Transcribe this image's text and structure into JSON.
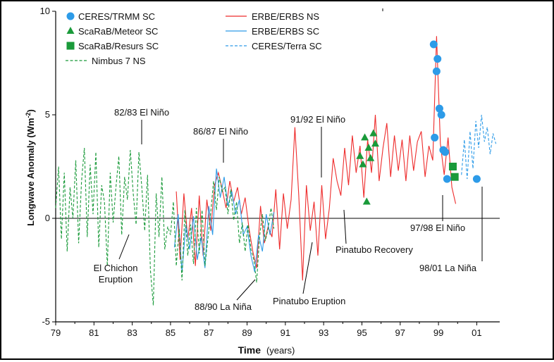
{
  "chart_data": {
    "type": "line",
    "title": "",
    "xlabel_bold": "Time",
    "xlabel_unit": "(years)",
    "ylabel": "Longwave Anomaly (Wm",
    "ylabel_sup": "-2",
    "ylabel_close": ")",
    "xlim": [
      1979,
      2002.2
    ],
    "ylim": [
      -5,
      10
    ],
    "x_ticks": [
      1979,
      1981,
      1983,
      1985,
      1987,
      1989,
      1991,
      1993,
      1995,
      1997,
      1999,
      2001
    ],
    "x_tick_labels": [
      "79",
      "81",
      "83",
      "85",
      "87",
      "89",
      "91",
      "93",
      "95",
      "97",
      "99",
      "01"
    ],
    "y_ticks": [
      -5,
      0,
      5,
      10
    ],
    "y_tick_labels": [
      "-5",
      "0",
      "5",
      "10"
    ],
    "legend_placement": "top-left",
    "series": [
      {
        "name": "CERES/TRMM SC",
        "kind": "marker",
        "marker": "circle",
        "color": "#2d9be8",
        "x": [
          1998.75,
          1998.8,
          1998.9,
          1998.95,
          1999.05,
          1999.15,
          1999.25,
          1999.35,
          1999.45,
          2001.0
        ],
        "y": [
          8.4,
          3.9,
          7.1,
          7.7,
          5.3,
          5.0,
          3.3,
          3.2,
          1.9,
          1.9
        ]
      },
      {
        "name": "ScaRaB/Meteor SC",
        "kind": "marker",
        "marker": "triangle",
        "color": "#1a9a3a",
        "x": [
          1994.9,
          1995.05,
          1995.15,
          1995.35,
          1995.45,
          1995.6,
          1995.7,
          1995.25
        ],
        "y": [
          3.0,
          2.6,
          3.9,
          3.4,
          2.9,
          4.1,
          3.6,
          0.8
        ]
      },
      {
        "name": "ScaRaB/Resurs SC",
        "kind": "marker",
        "marker": "square",
        "color": "#1a9a3a",
        "x": [
          1999.75,
          1999.85
        ],
        "y": [
          2.5,
          2.0
        ]
      },
      {
        "name": "ERBE/ERBS NS",
        "kind": "line",
        "style": "solid",
        "color": "#ee2c2c",
        "x": [
          1985.3,
          1985.5,
          1985.7,
          1985.9,
          1986.1,
          1986.3,
          1986.5,
          1986.7,
          1986.9,
          1987.1,
          1987.3,
          1987.5,
          1987.7,
          1987.9,
          1988.1,
          1988.3,
          1988.5,
          1988.7,
          1988.9,
          1989.1,
          1989.3,
          1989.5,
          1989.7,
          1989.9,
          1990.1,
          1990.3,
          1990.5,
          1990.7,
          1990.9,
          1991.1,
          1991.3,
          1991.5,
          1991.7,
          1991.9,
          1992.1,
          1992.3,
          1992.5,
          1992.7,
          1992.9,
          1993.1,
          1993.3,
          1993.5,
          1993.7,
          1993.9,
          1994.1,
          1994.3,
          1994.5,
          1994.7,
          1994.9,
          1995.1,
          1995.3,
          1995.5,
          1995.7,
          1995.9,
          1996.1,
          1996.3,
          1996.5,
          1996.7,
          1996.9,
          1997.1,
          1997.3,
          1997.5,
          1997.7,
          1997.9,
          1998.1,
          1998.3,
          1998.5,
          1998.7,
          1998.9,
          1999.1,
          1999.3,
          1999.5,
          1999.7,
          1999.9
        ],
        "y": [
          1.3,
          -2.0,
          1.2,
          -1.0,
          0.5,
          -2.3,
          1.1,
          -1.8,
          0.9,
          -0.6,
          1.6,
          2.2,
          1.4,
          0.5,
          1.8,
          0.8,
          1.5,
          0.2,
          1.0,
          -0.5,
          -1.6,
          -2.4,
          0.6,
          -1.2,
          -0.4,
          -0.9,
          1.4,
          -1.5,
          1.2,
          -0.5,
          0.9,
          4.4,
          1.1,
          -3.0,
          1.6,
          -0.6,
          0.8,
          -1.8,
          1.6,
          -1.0,
          0.5,
          2.9,
          1.8,
          1.1,
          3.4,
          1.6,
          4.0,
          2.2,
          3.5,
          1.0,
          3.8,
          2.2,
          5.0,
          1.8,
          3.4,
          4.6,
          2.0,
          4.0,
          2.3,
          3.8,
          1.8,
          4.0,
          2.3,
          3.7,
          4.2,
          2.0,
          3.5,
          2.8,
          8.8,
          3.6,
          2.1,
          3.9,
          1.5,
          0.7
        ]
      },
      {
        "name": "ERBE/ERBS SC",
        "kind": "line",
        "style": "solid",
        "color": "#2d9be8",
        "x": [
          1985.2,
          1985.4,
          1985.6,
          1985.8,
          1986.0,
          1986.2,
          1986.4,
          1986.6,
          1986.8,
          1987.0,
          1987.2,
          1987.4,
          1987.6,
          1987.8,
          1988.0,
          1988.2,
          1988.4,
          1988.6,
          1988.8,
          1989.0,
          1989.2,
          1989.4,
          1989.6,
          1989.8,
          1990.0,
          1990.2,
          1990.4
        ],
        "y": [
          -1.4,
          0.2,
          -2.6,
          -0.3,
          -1.5,
          0.1,
          -2.0,
          -0.9,
          -2.4,
          0.6,
          -0.8,
          2.4,
          1.0,
          2.0,
          0.6,
          1.3,
          0.2,
          0.9,
          -0.8,
          -0.4,
          -1.8,
          -2.6,
          -0.8,
          -1.6,
          0.2,
          -0.8,
          0.3
        ]
      },
      {
        "name": "CERES/Terra SC",
        "kind": "line",
        "style": "dashed",
        "color": "#2d9be8",
        "x": [
          2000.2,
          2000.35,
          2000.5,
          2000.65,
          2000.8,
          2000.95,
          2001.1,
          2001.25,
          2001.4,
          2001.55,
          2001.7,
          2001.85,
          2002.0
        ],
        "y": [
          2.1,
          3.8,
          1.9,
          4.2,
          2.4,
          4.7,
          3.4,
          5.0,
          3.7,
          4.4,
          3.1,
          4.1,
          3.6
        ]
      },
      {
        "name": "Nimbus 7 NS",
        "kind": "line",
        "style": "dashed",
        "color": "#1a9a3a",
        "x": [
          1979.0,
          1979.15,
          1979.3,
          1979.45,
          1979.6,
          1979.75,
          1979.9,
          1980.05,
          1980.2,
          1980.35,
          1980.5,
          1980.65,
          1980.8,
          1980.95,
          1981.1,
          1981.25,
          1981.4,
          1981.55,
          1981.7,
          1981.85,
          1982.0,
          1982.15,
          1982.3,
          1982.45,
          1982.6,
          1982.75,
          1982.9,
          1983.05,
          1983.2,
          1983.35,
          1983.5,
          1983.65,
          1983.8,
          1983.95,
          1984.1,
          1984.25,
          1984.4,
          1984.55,
          1984.7,
          1984.85,
          1985.0,
          1985.15,
          1985.3,
          1985.45,
          1985.6,
          1985.75,
          1985.9,
          1986.05,
          1986.2,
          1986.35,
          1986.5,
          1986.65,
          1986.8,
          1986.95,
          1987.1,
          1987.25,
          1987.4,
          1987.55,
          1987.7,
          1987.85,
          1988.0,
          1988.15,
          1988.3,
          1988.45,
          1988.6,
          1988.75,
          1988.9,
          1989.05,
          1989.2,
          1989.35,
          1989.5,
          1989.65,
          1989.8,
          1989.95,
          1990.1,
          1990.25,
          1990.4
        ],
        "y": [
          0.5,
          2.5,
          -1.0,
          2.2,
          -1.6,
          1.5,
          0.0,
          2.8,
          -1.2,
          1.8,
          3.4,
          -0.9,
          2.6,
          0.2,
          3.2,
          -1.4,
          1.6,
          0.8,
          -2.3,
          2.2,
          -0.2,
          1.5,
          3.0,
          -0.8,
          2.0,
          0.9,
          3.3,
          1.2,
          -0.3,
          3.2,
          1.5,
          -0.6,
          2.1,
          -2.5,
          -4.2,
          1.2,
          -0.9,
          2.0,
          -1.5,
          -0.4,
          -0.8,
          0.8,
          -2.3,
          -0.5,
          -3.0,
          0.4,
          -1.8,
          -0.3,
          -2.2,
          0.5,
          -1.7,
          0.4,
          -2.3,
          -1.0,
          0.3,
          1.8,
          0.4,
          2.0,
          1.3,
          1.5,
          0.2,
          1.4,
          -0.1,
          0.8,
          -1.2,
          -0.2,
          -1.6,
          -0.3,
          -1.5,
          -2.0,
          -3.1,
          -0.9,
          0.2,
          -1.1,
          -0.5,
          0.5,
          -0.5
        ]
      }
    ],
    "annotations": [
      {
        "text": "82/83 El Niño",
        "x": 1983.55,
        "y": 3.55
      },
      {
        "text": "86/87 El Niño",
        "x": 1987.7,
        "y": 2.7
      },
      {
        "text": "91/92 El Niño",
        "x": 1992.7,
        "y": 2.0
      },
      {
        "text": "El Chichon",
        "x": 1982.1,
        "y": -0.8,
        "line2": "Eruption"
      },
      {
        "text": "88/90 La Niña",
        "x": 1989.3,
        "y": -2.9
      },
      {
        "text": "Pinatubo Eruption",
        "x": 1992.2,
        "y": -2.6
      },
      {
        "text": "Pinatubo Recovery",
        "x": 1993.8,
        "y": 0.2
      },
      {
        "text": "97/98 El Niño",
        "x": 1999.1,
        "y": 0.1
      },
      {
        "text": "98/01 La Niña",
        "x": 2001.1,
        "y": 1.7
      }
    ]
  }
}
